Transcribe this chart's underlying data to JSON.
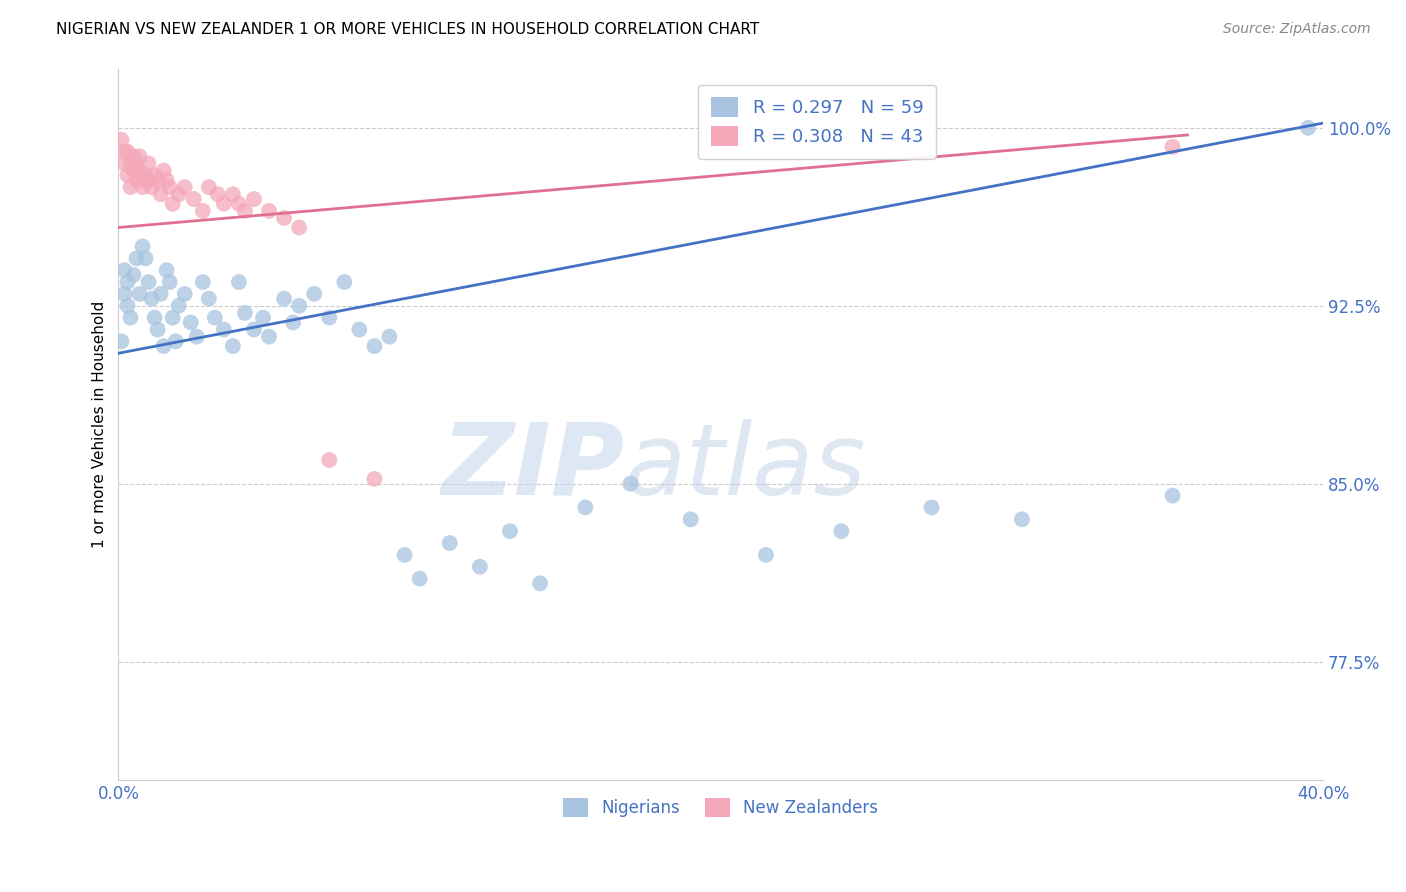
{
  "title": "NIGERIAN VS NEW ZEALANDER 1 OR MORE VEHICLES IN HOUSEHOLD CORRELATION CHART",
  "source": "Source: ZipAtlas.com",
  "ylabel": "1 or more Vehicles in Household",
  "watermark_zip": "ZIP",
  "watermark_atlas": "atlas",
  "xlim": [
    0.0,
    0.4
  ],
  "ylim": [
    0.725,
    1.025
  ],
  "yticks": [
    0.775,
    0.85,
    0.925,
    1.0
  ],
  "ytick_labels": [
    "77.5%",
    "85.0%",
    "92.5%",
    "100.0%"
  ],
  "xticks": [
    0.0,
    0.05,
    0.1,
    0.15,
    0.2,
    0.25,
    0.3,
    0.35,
    0.4
  ],
  "xtick_labels": [
    "0.0%",
    "",
    "",
    "",
    "",
    "",
    "",
    "",
    "40.0%"
  ],
  "nigerian_color": "#a8c4e0",
  "nz_color": "#f4a7b9",
  "nigerian_line_color": "#4472c4",
  "nz_line_color": "#e07090",
  "legend_nigerian_label": "R = 0.297   N = 59",
  "legend_nz_label": "R = 0.308   N = 43",
  "legend_bottom_nigerian": "Nigerians",
  "legend_bottom_nz": "New Zealanders",
  "background_color": "#ffffff",
  "grid_color": "#cccccc",
  "nigerian_x": [
    0.001,
    0.002,
    0.002,
    0.003,
    0.003,
    0.004,
    0.005,
    0.006,
    0.007,
    0.008,
    0.009,
    0.01,
    0.011,
    0.012,
    0.013,
    0.014,
    0.015,
    0.016,
    0.017,
    0.018,
    0.019,
    0.02,
    0.022,
    0.024,
    0.026,
    0.028,
    0.03,
    0.032,
    0.035,
    0.038,
    0.04,
    0.042,
    0.045,
    0.048,
    0.05,
    0.055,
    0.058,
    0.06,
    0.065,
    0.07,
    0.075,
    0.08,
    0.085,
    0.09,
    0.095,
    0.1,
    0.11,
    0.12,
    0.13,
    0.14,
    0.155,
    0.17,
    0.19,
    0.215,
    0.24,
    0.27,
    0.3,
    0.35,
    0.395
  ],
  "nigerian_y": [
    0.91,
    0.93,
    0.94,
    0.935,
    0.925,
    0.92,
    0.938,
    0.945,
    0.93,
    0.95,
    0.945,
    0.935,
    0.928,
    0.92,
    0.915,
    0.93,
    0.908,
    0.94,
    0.935,
    0.92,
    0.91,
    0.925,
    0.93,
    0.918,
    0.912,
    0.935,
    0.928,
    0.92,
    0.915,
    0.908,
    0.935,
    0.922,
    0.915,
    0.92,
    0.912,
    0.928,
    0.918,
    0.925,
    0.93,
    0.92,
    0.935,
    0.915,
    0.908,
    0.912,
    0.82,
    0.81,
    0.825,
    0.815,
    0.83,
    0.808,
    0.84,
    0.85,
    0.835,
    0.82,
    0.83,
    0.84,
    0.835,
    0.845,
    1.0
  ],
  "nz_x": [
    0.001,
    0.002,
    0.002,
    0.003,
    0.003,
    0.004,
    0.004,
    0.005,
    0.005,
    0.006,
    0.006,
    0.007,
    0.007,
    0.008,
    0.008,
    0.009,
    0.01,
    0.01,
    0.011,
    0.012,
    0.013,
    0.014,
    0.015,
    0.016,
    0.017,
    0.018,
    0.02,
    0.022,
    0.025,
    0.028,
    0.03,
    0.033,
    0.035,
    0.038,
    0.04,
    0.042,
    0.045,
    0.05,
    0.055,
    0.06,
    0.07,
    0.085,
    0.35
  ],
  "nz_y": [
    0.995,
    0.99,
    0.985,
    0.99,
    0.98,
    0.985,
    0.975,
    0.988,
    0.982,
    0.985,
    0.978,
    0.988,
    0.982,
    0.978,
    0.975,
    0.98,
    0.985,
    0.978,
    0.975,
    0.98,
    0.978,
    0.972,
    0.982,
    0.978,
    0.975,
    0.968,
    0.972,
    0.975,
    0.97,
    0.965,
    0.975,
    0.972,
    0.968,
    0.972,
    0.968,
    0.965,
    0.97,
    0.965,
    0.962,
    0.958,
    0.86,
    0.852,
    0.992
  ]
}
